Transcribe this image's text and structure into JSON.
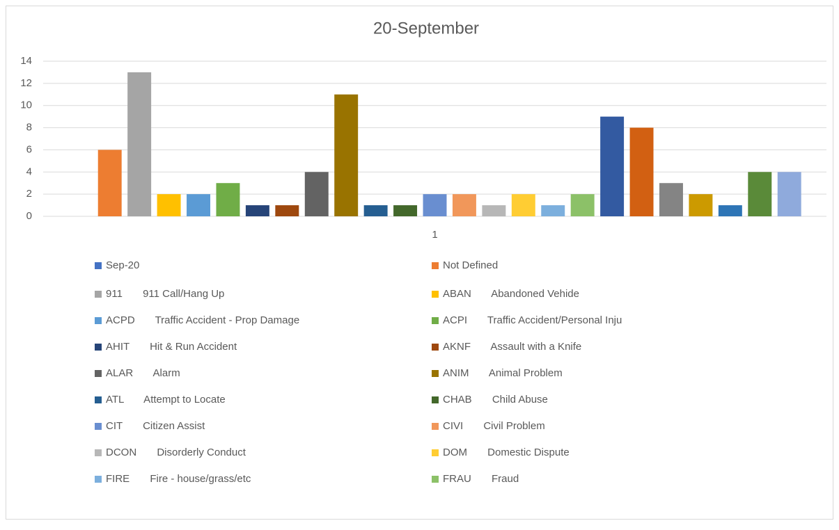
{
  "chart_data": {
    "type": "bar",
    "title": "20-September",
    "categories": [
      "1"
    ],
    "ylim": [
      0,
      14
    ],
    "yticks": [
      0,
      2,
      4,
      6,
      8,
      10,
      12,
      14
    ],
    "grid": true,
    "series": [
      {
        "name": "Sep-20",
        "color": "#4472c4",
        "values": [
          0
        ]
      },
      {
        "name": "Not Defined",
        "color": "#ed7d31",
        "values": [
          6
        ]
      },
      {
        "name": "911       911 Call/Hang Up",
        "color": "#a5a5a5",
        "values": [
          13
        ]
      },
      {
        "name": "ABAN       Abandoned Vehide",
        "color": "#ffc000",
        "values": [
          2
        ]
      },
      {
        "name": "ACPD       Traffic Accident - Prop Damage",
        "color": "#5b9bd5",
        "values": [
          2
        ]
      },
      {
        "name": "ACPI       Traffic Accident/Personal Inju",
        "color": "#70ad47",
        "values": [
          3
        ]
      },
      {
        "name": "AHIT       Hit & Run Accident",
        "color": "#264478",
        "values": [
          1
        ]
      },
      {
        "name": "AKNF       Assault with a Knife",
        "color": "#9e480e",
        "values": [
          1
        ]
      },
      {
        "name": "ALAR       Alarm",
        "color": "#636363",
        "values": [
          4
        ]
      },
      {
        "name": "ANIM       Animal Problem",
        "color": "#997300",
        "values": [
          11
        ]
      },
      {
        "name": "ATL       Attempt to Locate",
        "color": "#255e91",
        "values": [
          1
        ]
      },
      {
        "name": "CHAB       Child Abuse",
        "color": "#43682b",
        "values": [
          1
        ]
      },
      {
        "name": "CIT       Citizen Assist",
        "color": "#698ed0",
        "values": [
          2
        ]
      },
      {
        "name": "CIVI       Civil Problem",
        "color": "#f1975a",
        "values": [
          2
        ]
      },
      {
        "name": "DCON       Disorderly Conduct",
        "color": "#b7b7b7",
        "values": [
          1
        ]
      },
      {
        "name": "DOM       Domestic Dispute",
        "color": "#ffcd33",
        "values": [
          2
        ]
      },
      {
        "name": "FIRE       Fire - house/grass/etc",
        "color": "#7cafdd",
        "values": [
          1
        ]
      },
      {
        "name": "FRAU       Fraud",
        "color": "#8cc168",
        "values": [
          2
        ]
      },
      {
        "color": "#335aa1",
        "values": [
          9
        ]
      },
      {
        "color": "#d26012",
        "values": [
          8
        ]
      },
      {
        "color": "#848484",
        "values": [
          3
        ]
      },
      {
        "color": "#cc9a00",
        "values": [
          2
        ]
      },
      {
        "color": "#2e75b6",
        "values": [
          1
        ]
      },
      {
        "color": "#5a8a39",
        "values": [
          4
        ]
      },
      {
        "color": "#8faadc",
        "values": [
          4
        ]
      }
    ]
  }
}
